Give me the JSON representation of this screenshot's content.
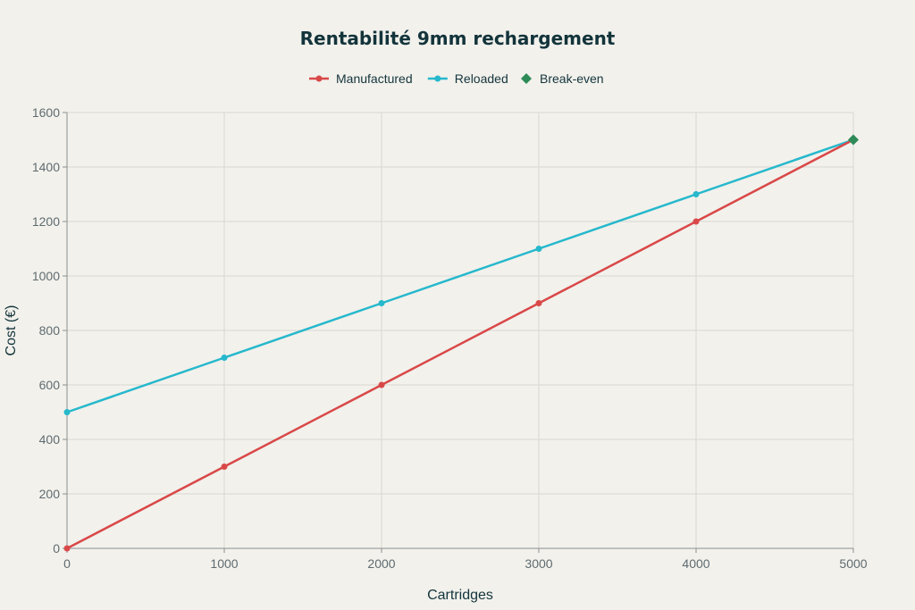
{
  "chart_data": {
    "type": "line",
    "title": "Rentabilité 9mm rechargement",
    "xlabel": "Cartridges",
    "ylabel": "Cost (€)",
    "x": [
      0,
      1000,
      2000,
      3000,
      4000,
      5000
    ],
    "xlim": [
      0,
      5000
    ],
    "ylim": [
      0,
      1600
    ],
    "x_ticks": [
      "0",
      "1000",
      "2000",
      "3000",
      "4000",
      "5000"
    ],
    "y_ticks": [
      "0",
      "200",
      "400",
      "600",
      "800",
      "1000",
      "1200",
      "1400",
      "1600"
    ],
    "grid": true,
    "legend_position": "top-center",
    "series": [
      {
        "name": "Manufactured",
        "color": "#d94848",
        "values": [
          0,
          300,
          600,
          900,
          1200,
          1500
        ]
      },
      {
        "name": "Reloaded",
        "color": "#26b8cc",
        "values": [
          500,
          700,
          900,
          1100,
          1300,
          1500
        ]
      }
    ],
    "markers": [
      {
        "name": "Break-even",
        "color": "#2e8b57",
        "symbol": "diamond",
        "x": 5000,
        "y": 1500
      }
    ]
  }
}
